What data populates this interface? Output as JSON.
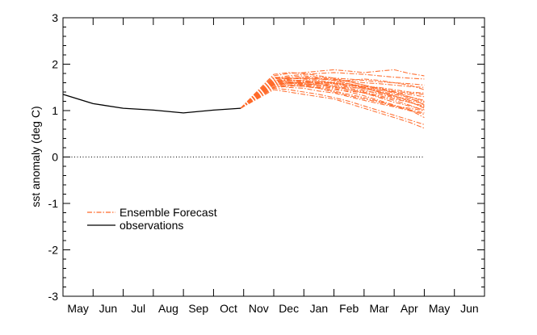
{
  "chart_data": {
    "type": "line",
    "title": "",
    "xlabel": "",
    "ylabel": "sst anomaly (deg C)",
    "x_tick_labels": [
      "May",
      "Jun",
      "Jul",
      "Aug",
      "Sep",
      "Oct",
      "Nov",
      "Dec",
      "Jan",
      "Feb",
      "Mar",
      "Apr",
      "May",
      "Jun"
    ],
    "xlim": [
      0,
      14
    ],
    "ylim": [
      -3,
      3
    ],
    "y_ticks": [
      -3,
      -2,
      -1,
      0,
      1,
      2,
      3
    ],
    "y_tick_labels": [
      "-3",
      "-2",
      "-1",
      "0",
      "1",
      "2",
      "3"
    ],
    "zero_line": 0,
    "legend": {
      "position": "lower-left",
      "entries": [
        "Ensemble Forecast",
        "observations"
      ]
    },
    "colors": {
      "forecast": "#ff6a2a",
      "observations": "#000000"
    },
    "observations": {
      "name": "observations",
      "x": [
        0,
        1,
        2,
        3,
        4,
        5,
        5.9
      ],
      "y": [
        1.35,
        1.15,
        1.05,
        1.01,
        0.95,
        1.01,
        1.05
      ]
    },
    "forecast_x": [
      5.9,
      7,
      7.5,
      8,
      8.5,
      9,
      9.5,
      10,
      10.5,
      11,
      11.5,
      12
    ],
    "forecast_init": 1.05,
    "forecast_range": {
      "Dec": [
        1.45,
        1.9
      ],
      "Jan": [
        1.35,
        1.88
      ],
      "Feb": [
        1.15,
        1.9
      ],
      "Mar": [
        0.75,
        1.9
      ],
      "Apr": [
        0.6,
        1.75
      ]
    },
    "series": [
      {
        "name": "member 1",
        "values": [
          1.05,
          1.5,
          1.55,
          1.52,
          1.48,
          1.42,
          1.35,
          1.28,
          1.2,
          1.1,
          1.02,
          0.95
        ]
      },
      {
        "name": "member 2",
        "values": [
          1.05,
          1.55,
          1.6,
          1.58,
          1.55,
          1.5,
          1.45,
          1.4,
          1.32,
          1.25,
          1.18,
          1.1
        ]
      },
      {
        "name": "member 3",
        "values": [
          1.05,
          1.6,
          1.65,
          1.65,
          1.62,
          1.58,
          1.55,
          1.5,
          1.45,
          1.4,
          1.35,
          1.3
        ]
      },
      {
        "name": "member 4",
        "values": [
          1.05,
          1.65,
          1.7,
          1.7,
          1.68,
          1.66,
          1.64,
          1.6,
          1.58,
          1.55,
          1.52,
          1.5
        ]
      },
      {
        "name": "member 5",
        "values": [
          1.05,
          1.7,
          1.75,
          1.78,
          1.8,
          1.82,
          1.8,
          1.78,
          1.75,
          1.72,
          1.7,
          1.68
        ]
      },
      {
        "name": "member 6",
        "values": [
          1.05,
          1.75,
          1.8,
          1.82,
          1.85,
          1.88,
          1.85,
          1.82,
          1.85,
          1.88,
          1.8,
          1.75
        ]
      },
      {
        "name": "member 7",
        "values": [
          1.05,
          1.48,
          1.45,
          1.4,
          1.35,
          1.28,
          1.2,
          1.1,
          1.0,
          0.9,
          0.8,
          0.7
        ]
      },
      {
        "name": "member 8",
        "values": [
          1.05,
          1.45,
          1.4,
          1.35,
          1.3,
          1.25,
          1.15,
          1.05,
          0.95,
          0.85,
          0.75,
          0.62
        ]
      },
      {
        "name": "member 9",
        "values": [
          1.05,
          1.58,
          1.62,
          1.6,
          1.58,
          1.55,
          1.5,
          1.48,
          1.4,
          1.32,
          1.22,
          1.15
        ]
      },
      {
        "name": "member 10",
        "values": [
          1.05,
          1.62,
          1.68,
          1.72,
          1.7,
          1.68,
          1.62,
          1.55,
          1.45,
          1.38,
          1.3,
          1.2
        ]
      },
      {
        "name": "member 11",
        "values": [
          1.05,
          1.52,
          1.58,
          1.6,
          1.62,
          1.6,
          1.58,
          1.52,
          1.48,
          1.42,
          1.38,
          1.35
        ]
      },
      {
        "name": "member 12",
        "values": [
          1.05,
          1.68,
          1.72,
          1.75,
          1.72,
          1.7,
          1.68,
          1.65,
          1.62,
          1.6,
          1.58,
          1.55
        ]
      },
      {
        "name": "member 13",
        "values": [
          1.05,
          1.55,
          1.5,
          1.48,
          1.42,
          1.38,
          1.3,
          1.22,
          1.15,
          1.08,
          1.0,
          0.92
        ]
      },
      {
        "name": "member 14",
        "values": [
          1.05,
          1.72,
          1.7,
          1.68,
          1.65,
          1.6,
          1.55,
          1.48,
          1.4,
          1.32,
          1.2,
          1.05
        ]
      },
      {
        "name": "member 15",
        "values": [
          1.05,
          1.58,
          1.55,
          1.52,
          1.5,
          1.45,
          1.42,
          1.38,
          1.3,
          1.22,
          1.12,
          1.0
        ]
      },
      {
        "name": "member 16",
        "values": [
          1.05,
          1.62,
          1.65,
          1.62,
          1.6,
          1.58,
          1.52,
          1.45,
          1.35,
          1.28,
          1.18,
          1.08
        ]
      },
      {
        "name": "member 17",
        "values": [
          1.05,
          1.66,
          1.62,
          1.58,
          1.55,
          1.52,
          1.48,
          1.42,
          1.38,
          1.3,
          1.25,
          1.18
        ]
      },
      {
        "name": "member 18",
        "values": [
          1.05,
          1.5,
          1.52,
          1.55,
          1.58,
          1.62,
          1.65,
          1.68,
          1.65,
          1.6,
          1.55,
          1.45
        ]
      },
      {
        "name": "member 19",
        "values": [
          1.05,
          1.78,
          1.82,
          1.8,
          1.75,
          1.7,
          1.62,
          1.55,
          1.48,
          1.4,
          1.3,
          1.22
        ]
      },
      {
        "name": "member 20",
        "values": [
          1.05,
          1.6,
          1.58,
          1.55,
          1.48,
          1.4,
          1.32,
          1.25,
          1.18,
          1.1,
          1.05,
          1.0
        ]
      },
      {
        "name": "member 21",
        "values": [
          1.05,
          1.64,
          1.66,
          1.64,
          1.62,
          1.58,
          1.55,
          1.52,
          1.5,
          1.45,
          1.4,
          1.38
        ]
      },
      {
        "name": "member 22",
        "values": [
          1.05,
          1.56,
          1.6,
          1.56,
          1.52,
          1.48,
          1.4,
          1.32,
          1.22,
          1.12,
          1.02,
          0.85
        ]
      },
      {
        "name": "member 23",
        "values": [
          1.05,
          1.7,
          1.68,
          1.7,
          1.68,
          1.65,
          1.58,
          1.5,
          1.42,
          1.35,
          1.28,
          1.12
        ]
      },
      {
        "name": "member 24",
        "values": [
          1.05,
          1.62,
          1.6,
          1.62,
          1.58,
          1.52,
          1.45,
          1.38,
          1.28,
          1.18,
          1.1,
          1.02
        ]
      }
    ]
  }
}
